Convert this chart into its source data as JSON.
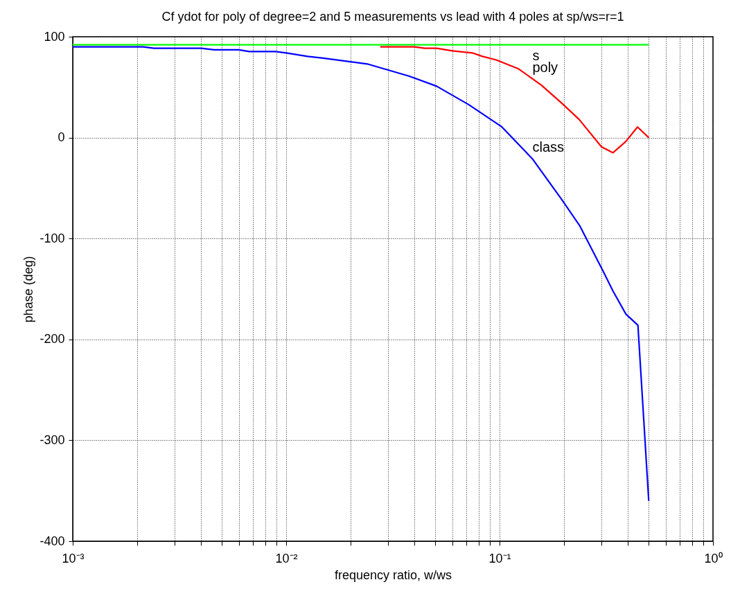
{
  "chart_data": {
    "type": "line",
    "title": "Cf ydot for poly of degree=2 and 5 measurements vs lead with 4 poles at sp/ws=r=1",
    "xlabel": "frequency ratio, w/ws",
    "ylabel": "phase (deg)",
    "log": "x",
    "grid": true,
    "legend": false,
    "line_style": "solid",
    "marker": "none",
    "xlim": [
      0.001,
      1
    ],
    "ylim": [
      -400,
      100
    ],
    "xticks": [
      {
        "value": 0.001,
        "label": "10⁻³"
      },
      {
        "value": 0.002,
        "label": null
      },
      {
        "value": 0.003,
        "label": null
      },
      {
        "value": 0.004,
        "label": null
      },
      {
        "value": 0.005,
        "label": null
      },
      {
        "value": 0.006,
        "label": null
      },
      {
        "value": 0.007,
        "label": null
      },
      {
        "value": 0.008,
        "label": null
      },
      {
        "value": 0.009,
        "label": null
      },
      {
        "value": 0.01,
        "label": "10⁻²"
      },
      {
        "value": 0.02,
        "label": null
      },
      {
        "value": 0.03,
        "label": null
      },
      {
        "value": 0.04,
        "label": null
      },
      {
        "value": 0.05,
        "label": null
      },
      {
        "value": 0.06,
        "label": null
      },
      {
        "value": 0.07,
        "label": null
      },
      {
        "value": 0.08,
        "label": null
      },
      {
        "value": 0.09,
        "label": null
      },
      {
        "value": 0.1,
        "label": "10⁻¹"
      },
      {
        "value": 0.2,
        "label": null
      },
      {
        "value": 0.3,
        "label": null
      },
      {
        "value": 0.4,
        "label": null
      },
      {
        "value": 0.5,
        "label": null
      },
      {
        "value": 0.6,
        "label": null
      },
      {
        "value": 0.7,
        "label": null
      },
      {
        "value": 0.8,
        "label": null
      },
      {
        "value": 0.9,
        "label": null
      },
      {
        "value": 1,
        "label": "10⁰"
      }
    ],
    "yticks": [
      -400,
      -300,
      -200,
      -100,
      0,
      100
    ],
    "series": [
      {
        "name": "poly",
        "color": "#ff0000",
        "x": [
          0.0276,
          0.04,
          0.0445,
          0.0507,
          0.06,
          0.0745,
          0.0831,
          0.0966,
          0.123,
          0.157,
          0.196,
          0.236,
          0.3,
          0.34,
          0.39,
          0.443,
          0.5
        ],
        "values": [
          90,
          90,
          88.6,
          88.6,
          86,
          84,
          80.5,
          77,
          68,
          52,
          34,
          18,
          -9,
          -15,
          -4,
          10.5,
          0
        ]
      },
      {
        "name": "class",
        "color": "#0000ff",
        "x": [
          0.001,
          0.00214,
          0.0024,
          0.004,
          0.0046,
          0.006,
          0.0067,
          0.0089,
          0.01,
          0.0126,
          0.0149,
          0.0203,
          0.024,
          0.03,
          0.0376,
          0.0507,
          0.0718,
          0.102,
          0.111,
          0.1425,
          0.195,
          0.237,
          0.305,
          0.34,
          0.391,
          0.445,
          0.5
        ],
        "values": [
          90,
          90,
          88.6,
          88.6,
          87,
          87,
          85.3,
          85.3,
          84,
          80.5,
          78.8,
          75,
          73,
          67,
          61,
          51,
          32.6,
          11,
          3,
          -21,
          -61,
          -87,
          -132,
          -152,
          -175,
          -186,
          -360
        ]
      },
      {
        "name": "s",
        "color": "#00ff00",
        "x": [
          0.001,
          0.5
        ],
        "values": [
          92,
          92
        ]
      }
    ]
  }
}
